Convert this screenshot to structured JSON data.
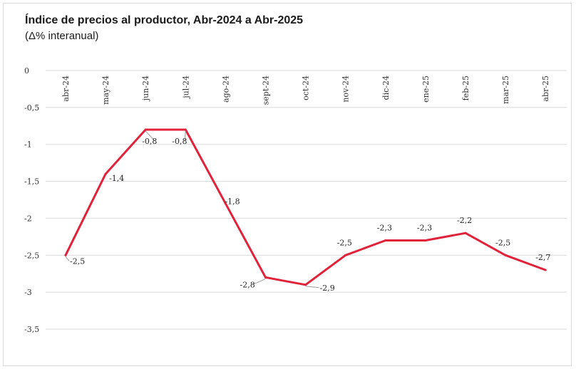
{
  "header": {
    "title": "Índice de precios al productor, Abr-2024 a Abr-2025",
    "subtitle": "(Δ% interanual)"
  },
  "chart_data": {
    "type": "line",
    "title": "Índice de precios al productor, Abr-2024 a Abr-2025",
    "subtitle": "(Δ% interanual)",
    "xlabel": "",
    "ylabel": "",
    "categories": [
      "abr-24",
      "may-24",
      "jun-24",
      "jul-24",
      "ago-24",
      "sept-24",
      "oct-24",
      "nov-24",
      "dic-24",
      "ene-25",
      "feb-25",
      "mar-25",
      "abr-25"
    ],
    "series": [
      {
        "values": [
          -2.5,
          -1.4,
          -0.8,
          -0.8,
          -1.8,
          -2.8,
          -2.9,
          -2.5,
          -2.3,
          -2.3,
          -2.2,
          -2.5,
          -2.7
        ],
        "labels": [
          "-2,5",
          "-1,4",
          "-0,8",
          "-0,8",
          "-1,8",
          "-2,8",
          "-2,9",
          "-2,5",
          "-2,3",
          "-2,3",
          "-2,2",
          "-2,5",
          "-2,7"
        ],
        "color": "#e0233a"
      }
    ],
    "y_ticks": [
      0,
      -0.5,
      -1,
      -1.5,
      -2,
      -2.5,
      -3,
      -3.5
    ],
    "y_tick_labels": [
      "0",
      "-0,5",
      "-1",
      "-1,5",
      "-2",
      "-2,5",
      "-3",
      "-3,5"
    ],
    "ylim": [
      -3.5,
      0
    ],
    "grid": true,
    "x_axis_position": "top",
    "legend": "none"
  }
}
